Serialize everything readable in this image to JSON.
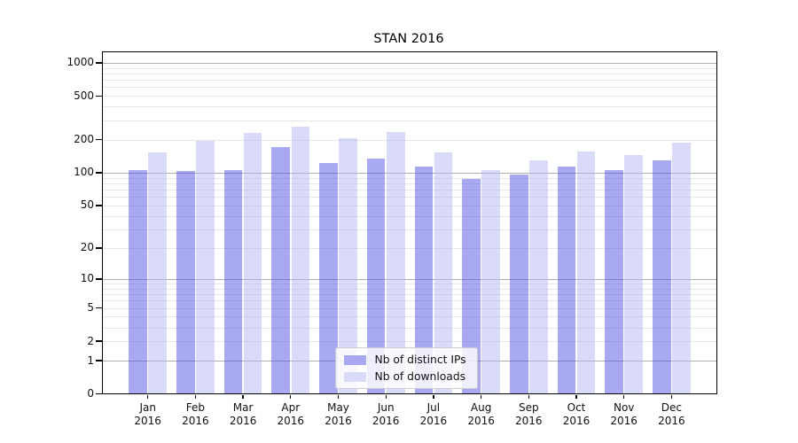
{
  "chart_data": {
    "type": "bar",
    "title": "STAN 2016",
    "categories": [
      "Jan",
      "Feb",
      "Mar",
      "Apr",
      "May",
      "Jun",
      "Jul",
      "Aug",
      "Sep",
      "Oct",
      "Nov",
      "Dec"
    ],
    "category_year": "2016",
    "series": [
      {
        "name": "Nb of distinct IPs",
        "values": [
          106,
          104,
          105,
          170,
          122,
          135,
          114,
          87,
          97,
          113,
          105,
          130
        ],
        "fill": "rgba(83,83,229,0.5)",
        "color": "#a9a9f1"
      },
      {
        "name": "Nb of downloads",
        "values": [
          154,
          194,
          231,
          264,
          207,
          235,
          154,
          106,
          130,
          156,
          145,
          188
        ],
        "fill": "rgba(181,181,243,0.5)",
        "color": "#dadaf9"
      }
    ],
    "yscale": "log10(1+y)",
    "ylim": [
      0,
      1270
    ],
    "y_ticks": [
      0,
      1,
      2,
      5,
      10,
      20,
      50,
      100,
      200,
      500,
      1000
    ],
    "grid": "horizontal major and minor gridlines",
    "legend_position": "lower center"
  },
  "colors": {
    "major_grid": "#adadad",
    "minor_grid": "#e7e7e7",
    "axis": "#000000",
    "text": "#111111",
    "background": "#ffffff",
    "bar_ips": "#a9a9f1",
    "bar_downloads": "#dadaf9"
  }
}
